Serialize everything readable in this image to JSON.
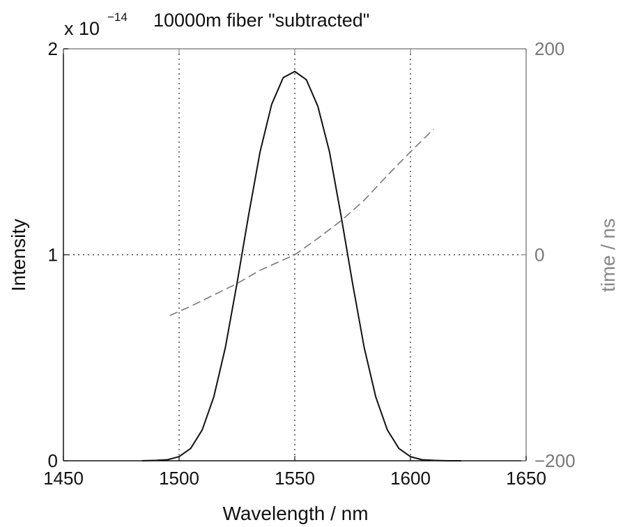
{
  "chart_data": {
    "type": "line",
    "title": "10000m fiber \"subtracted\"",
    "xlabel": "Wavelength / nm",
    "ylabel": "Intensity",
    "y2label": "time / ns",
    "y_multiplier_base": "x 10",
    "y_multiplier_exponent": "−14",
    "xlim": [
      1450,
      1650
    ],
    "ylim": [
      0,
      2
    ],
    "y2lim": [
      -200,
      200
    ],
    "grid": "dotted",
    "x_ticks": [
      "1450",
      "1500",
      "1550",
      "1600",
      "1650"
    ],
    "y_ticks": [
      "0",
      "1",
      "2"
    ],
    "y2_ticks": [
      "−200",
      "0",
      "200"
    ],
    "colors": {
      "left_axis": "#111111",
      "right_axis": "#888888",
      "intensity": "#111111",
      "time": "#777777"
    },
    "series": [
      {
        "axis": "left",
        "style": "solid",
        "x": [
          1484,
          1490,
          1495,
          1500,
          1505,
          1510,
          1515,
          1520,
          1525,
          1530,
          1535,
          1540,
          1545,
          1550,
          1555,
          1560,
          1565,
          1570,
          1575,
          1580,
          1585,
          1590,
          1595,
          1600,
          1605,
          1610,
          1616,
          1622
        ],
        "values": [
          0.0,
          0.002,
          0.005,
          0.02,
          0.06,
          0.15,
          0.31,
          0.55,
          0.86,
          1.19,
          1.5,
          1.73,
          1.86,
          1.89,
          1.85,
          1.72,
          1.5,
          1.19,
          0.86,
          0.55,
          0.31,
          0.15,
          0.06,
          0.02,
          0.005,
          0.002,
          0.0,
          0.0
        ]
      },
      {
        "axis": "right",
        "style": "dashed",
        "x": [
          1496,
          1505,
          1515,
          1525,
          1535,
          1545,
          1550,
          1560,
          1570,
          1580,
          1590,
          1600,
          1610
        ],
        "values": [
          -59,
          -50,
          -39,
          -28,
          -15,
          -5,
          0,
          16,
          33,
          53,
          77,
          100,
          122
        ]
      }
    ]
  }
}
